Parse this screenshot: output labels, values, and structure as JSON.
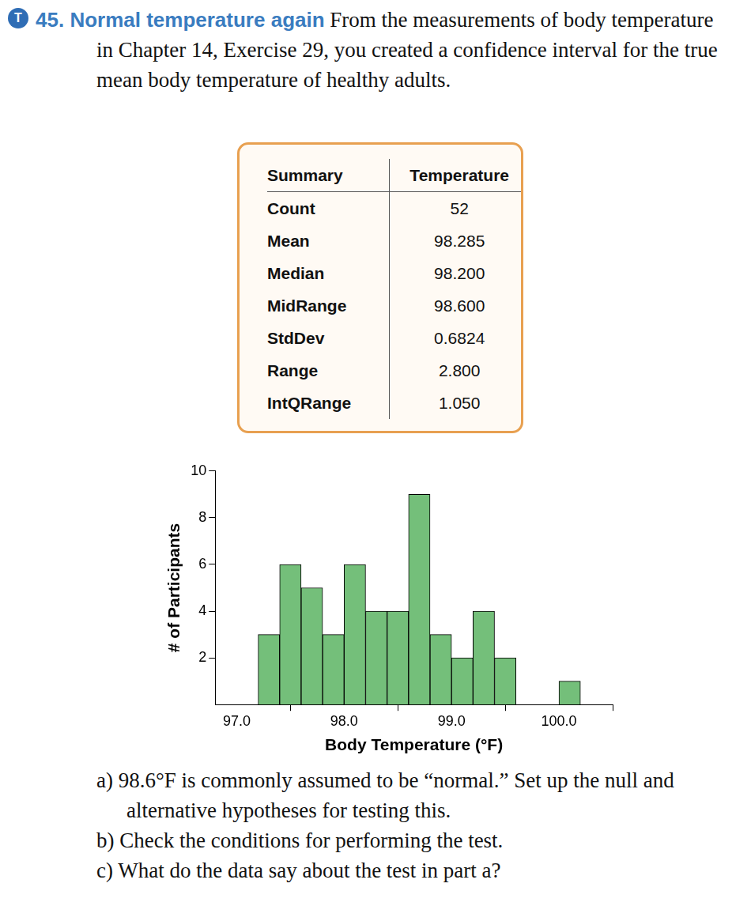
{
  "exercise": {
    "badge": "T",
    "number": "45.",
    "title": "Normal temperature again",
    "text": "From the measurements of body temperature in Chapter 14, Exercise 29, you created a confidence interval for the true mean body temperature of healthy adults."
  },
  "summary_table": {
    "header": [
      "Summary",
      "Temperature"
    ],
    "rows": [
      [
        "Count",
        "52"
      ],
      [
        "Mean",
        "98.285"
      ],
      [
        "Median",
        "98.200"
      ],
      [
        "MidRange",
        "98.600"
      ],
      [
        "StdDev",
        "0.6824"
      ],
      [
        "Range",
        "2.800"
      ],
      [
        "IntQRange",
        "1.050"
      ]
    ]
  },
  "chart_data": {
    "type": "histogram",
    "xlabel": "Body Temperature (°F)",
    "ylabel": "# of Participants",
    "bins": [
      97.2,
      97.4,
      97.6,
      97.8,
      98.0,
      98.2,
      98.4,
      98.6,
      98.8,
      99.0,
      99.2,
      99.4,
      99.6,
      99.8,
      100.0,
      100.2
    ],
    "counts": [
      3,
      6,
      5,
      3,
      6,
      4,
      4,
      9,
      3,
      2,
      4,
      2,
      0,
      0,
      1
    ],
    "color": "#74bf7a",
    "xlim": [
      96.8,
      100.5
    ],
    "xticks": [
      {
        "value": 97,
        "label": "97.0"
      },
      {
        "value": 98,
        "label": "98.0"
      },
      {
        "value": 99,
        "label": "99.0"
      },
      {
        "value": 100,
        "label": "100.0"
      }
    ],
    "ylim": [
      0,
      10
    ],
    "yticks": [
      2,
      4,
      6,
      8,
      10
    ],
    "grid": false
  },
  "questions": [
    {
      "label": "a)",
      "text": "98.6°F is commonly assumed to be “normal.” Set up the null and alternative hypotheses for testing this."
    },
    {
      "label": "b)",
      "text": "Check the conditions for performing the test."
    },
    {
      "label": "c)",
      "text": "What do the data say about the test in part a?"
    }
  ]
}
